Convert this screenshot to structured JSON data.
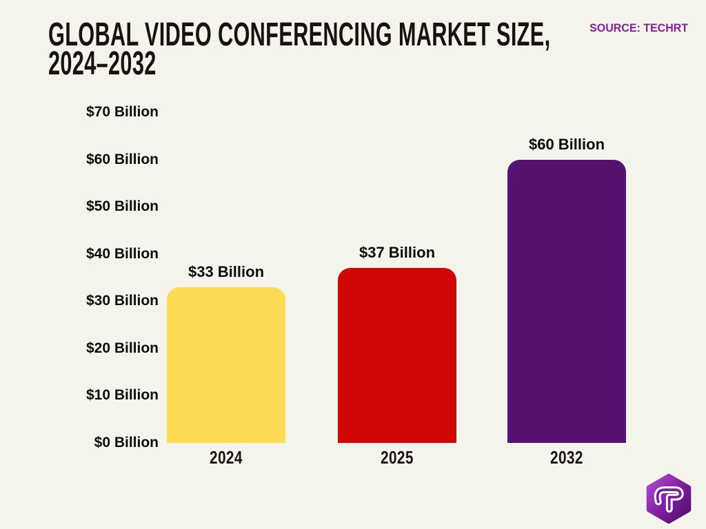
{
  "page": {
    "background_color": "#f4f3ec",
    "title_line1": "GLOBAL VIDEO CONFERENCING MARKET SIZE,",
    "title_line2": "2024–2032",
    "source_label": "SOURCE: TECHRT",
    "source_color": "#8a1f9c"
  },
  "chart_data": {
    "type": "bar",
    "title": "Global Video Conferencing Market Size, 2024–2032",
    "categories": [
      "2024",
      "2025",
      "2032"
    ],
    "values": [
      33,
      37,
      60
    ],
    "value_labels": [
      "$33 Billion",
      "$37 Billion",
      "$60 Billion"
    ],
    "bar_colors": [
      "#fcdb55",
      "#d10707",
      "#551370"
    ],
    "xlabel": "",
    "ylabel": "",
    "ylim": [
      0,
      70
    ],
    "ytick_step": 10,
    "ytick_labels": [
      "$0 Billion",
      "$10 Billion",
      "$20 Billion",
      "$30 Billion",
      "$40 Billion",
      "$50 Billion",
      "$60 Billion",
      "$70 Billion"
    ],
    "grid": false,
    "legend": "none"
  },
  "logo": {
    "letter": "T",
    "shape": "rounded-hexagon",
    "gradient_top": "#af4bcd",
    "gradient_bottom": "#4e0d68",
    "letter_color": "#ffffff"
  }
}
